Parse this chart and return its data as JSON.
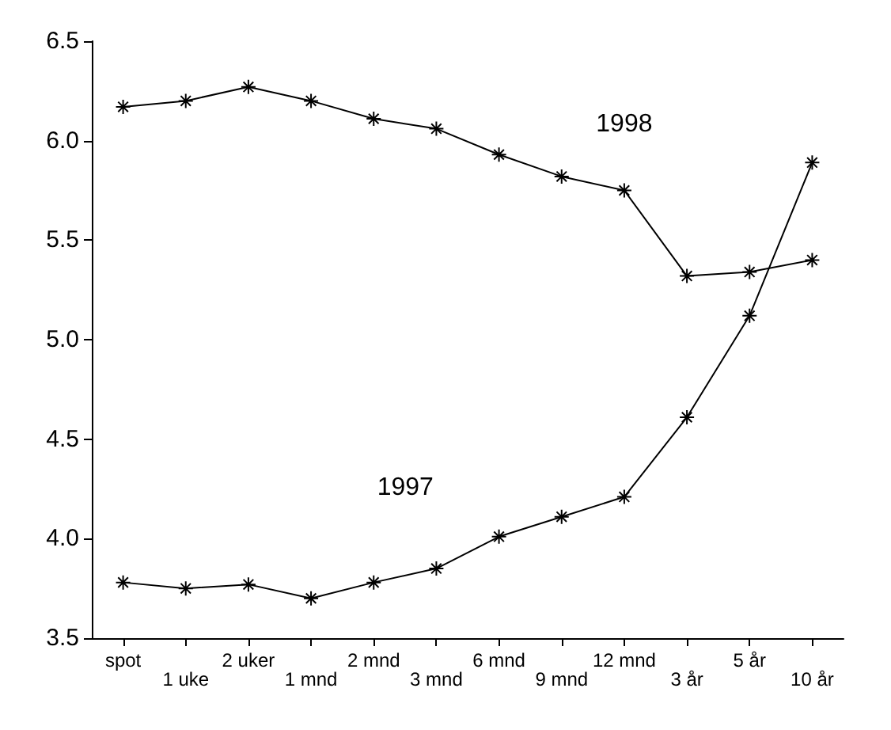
{
  "chart_data": {
    "type": "line",
    "categories": [
      "spot",
      "1 uke",
      "2 uker",
      "1 mnd",
      "2 mnd",
      "3 mnd",
      "6 mnd",
      "9 mnd",
      "12 mnd",
      "3 år",
      "5 år",
      "10 år"
    ],
    "series": [
      {
        "name": "1998",
        "color": "#000000",
        "values": [
          6.17,
          6.2,
          6.27,
          6.2,
          6.11,
          6.06,
          5.93,
          5.82,
          5.75,
          5.32,
          5.34,
          5.4
        ]
      },
      {
        "name": "1997",
        "color": "#000000",
        "values": [
          3.78,
          3.75,
          3.77,
          3.7,
          3.78,
          3.85,
          4.01,
          4.11,
          4.21,
          4.61,
          5.12,
          5.89
        ]
      }
    ],
    "ylim": [
      3.5,
      6.5
    ],
    "yticks": [
      3.5,
      {
        "value": 4,
        "label": "4.0"
      },
      4.5,
      {
        "value": 5,
        "label": "5.0"
      },
      5.5,
      {
        "value": 6,
        "label": "6.0"
      },
      6.5
    ],
    "grid": false,
    "marker": "cross",
    "line_style": "solid"
  }
}
